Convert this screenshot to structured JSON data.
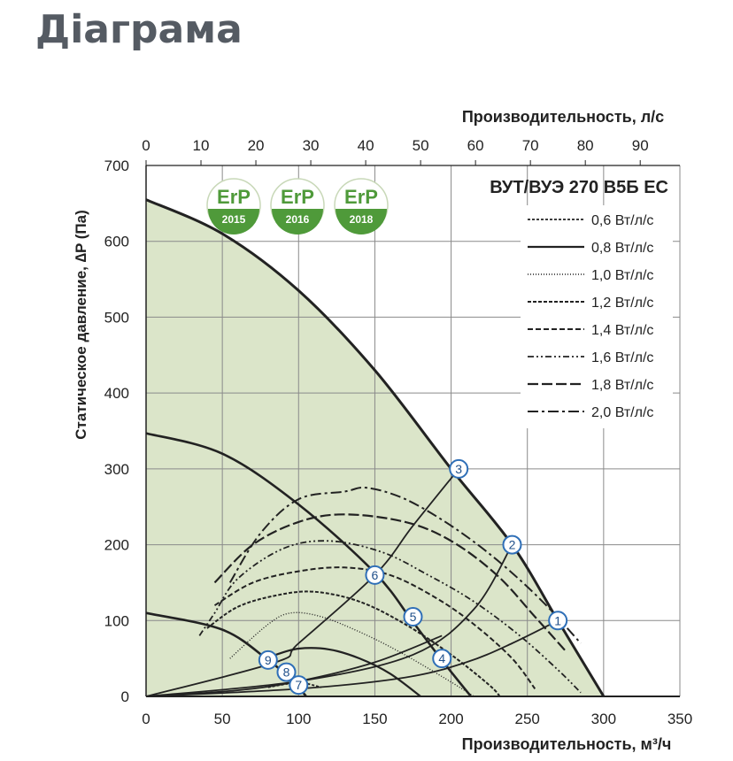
{
  "page": {
    "heading": "Діаграма"
  },
  "chart_data": {
    "type": "line",
    "title": "ВУТ/ВУЭ 270 В5Б ЕС",
    "xlabel": "Производительность, м³/ч",
    "x2label": "Производительность, л/с",
    "ylabel": "Статическое давление, ∆P (Па)",
    "xlim": [
      0,
      350
    ],
    "ylim": [
      0,
      700
    ],
    "x_ticks": [
      "0",
      "50",
      "100",
      "150",
      "200",
      "250",
      "300",
      "350"
    ],
    "x2_ticks": [
      "0",
      "10",
      "20",
      "30",
      "40",
      "50",
      "60",
      "70",
      "80",
      "90"
    ],
    "y_ticks": [
      "0",
      "100",
      "200",
      "300",
      "400",
      "500",
      "600",
      "700"
    ],
    "grid": true,
    "legend_position": "top-right",
    "badges": [
      {
        "text": "ErP",
        "year": "2015"
      },
      {
        "text": "ErP",
        "year": "2016"
      },
      {
        "text": "ErP",
        "year": "2018"
      }
    ],
    "legend": [
      {
        "label": "0,6 Вт/л/с",
        "dash": "3,2",
        "width": 1.8
      },
      {
        "label": "0,8 Вт/л/с",
        "dash": "",
        "width": 2.2
      },
      {
        "label": "1,0 Вт/л/с",
        "dash": "1,2",
        "width": 1.4
      },
      {
        "label": "1,2 Вт/л/с",
        "dash": "4,2",
        "width": 2
      },
      {
        "label": "1,4 Вт/л/с",
        "dash": "6,3",
        "width": 2
      },
      {
        "label": "1,6 Вт/л/с",
        "dash": "7,3,2,3,2,3",
        "width": 1.8
      },
      {
        "label": "1,8 Вт/л/с",
        "dash": "12,4",
        "width": 2.2
      },
      {
        "label": "2,0 Вт/л/с",
        "dash": "12,4,3,4",
        "width": 2
      }
    ],
    "fan_curves": [
      {
        "name": "max",
        "points": [
          [
            0,
            655
          ],
          [
            50,
            610
          ],
          [
            100,
            535
          ],
          [
            150,
            430
          ],
          [
            200,
            300
          ],
          [
            240,
            200
          ],
          [
            270,
            100
          ],
          [
            300,
            0
          ]
        ]
      },
      {
        "name": "mid",
        "points": [
          [
            0,
            347
          ],
          [
            50,
            320
          ],
          [
            100,
            253
          ],
          [
            150,
            163
          ],
          [
            175,
            98
          ],
          [
            195,
            45
          ],
          [
            213,
            0
          ]
        ]
      },
      {
        "name": "low",
        "points": [
          [
            0,
            110
          ],
          [
            50,
            88
          ],
          [
            80,
            48
          ],
          [
            92,
            28
          ],
          [
            100,
            12
          ],
          [
            105,
            0
          ]
        ]
      }
    ],
    "system_curves": [
      {
        "name": "s1",
        "points": [
          [
            0,
            0
          ],
          [
            100,
            10
          ],
          [
            170,
            25
          ],
          [
            210,
            45
          ],
          [
            240,
            70
          ],
          [
            270,
            100
          ]
        ]
      },
      {
        "name": "s2",
        "points": [
          [
            0,
            0
          ],
          [
            100,
            20
          ],
          [
            175,
            55
          ],
          [
            215,
            115
          ],
          [
            240,
            200
          ]
        ]
      },
      {
        "name": "s3",
        "points": [
          [
            0,
            0
          ],
          [
            85,
            45
          ],
          [
            100,
            70
          ],
          [
            150,
            160
          ],
          [
            175,
            225
          ],
          [
            205,
            300
          ]
        ]
      },
      {
        "name": "s4",
        "points": [
          [
            0,
            0
          ],
          [
            60,
            8
          ],
          [
            100,
            20
          ],
          [
            150,
            45
          ],
          [
            194,
            80
          ]
        ]
      }
    ],
    "sfp_curves": [
      {
        "label": "0,6 Вт/л/с",
        "points": [
          [
            80,
            12
          ],
          [
            100,
            18
          ],
          [
            115,
            12
          ]
        ]
      },
      {
        "label": "0,8 Вт/л/с",
        "points": [
          [
            85,
            55
          ],
          [
            100,
            63
          ],
          [
            120,
            62
          ],
          [
            140,
            50
          ],
          [
            160,
            30
          ],
          [
            180,
            0
          ]
        ]
      },
      {
        "label": "1,0 Вт/л/с",
        "points": [
          [
            55,
            50
          ],
          [
            80,
            95
          ],
          [
            95,
            110
          ],
          [
            115,
            105
          ],
          [
            140,
            85
          ],
          [
            165,
            60
          ],
          [
            195,
            25
          ],
          [
            215,
            0
          ]
        ]
      },
      {
        "label": "1,2 Вт/л/с",
        "points": [
          [
            40,
            90
          ],
          [
            60,
            118
          ],
          [
            85,
            133
          ],
          [
            110,
            138
          ],
          [
            140,
            125
          ],
          [
            170,
            95
          ],
          [
            200,
            55
          ],
          [
            225,
            15
          ],
          [
            232,
            0
          ]
        ]
      },
      {
        "label": "1,4 Вт/л/с",
        "points": [
          [
            45,
            120
          ],
          [
            70,
            150
          ],
          [
            100,
            165
          ],
          [
            130,
            170
          ],
          [
            160,
            160
          ],
          [
            190,
            130
          ],
          [
            215,
            95
          ],
          [
            240,
            50
          ],
          [
            255,
            10
          ]
        ]
      },
      {
        "label": "1,6 Вт/л/с",
        "points": [
          [
            35,
            80
          ],
          [
            45,
            110
          ],
          [
            60,
            155
          ],
          [
            90,
            195
          ],
          [
            120,
            205
          ],
          [
            155,
            190
          ],
          [
            185,
            160
          ],
          [
            215,
            125
          ],
          [
            245,
            80
          ],
          [
            270,
            35
          ],
          [
            285,
            5
          ]
        ]
      },
      {
        "label": "1,8 Вт/л/с",
        "points": [
          [
            45,
            150
          ],
          [
            70,
            200
          ],
          [
            100,
            230
          ],
          [
            130,
            240
          ],
          [
            170,
            230
          ],
          [
            200,
            205
          ],
          [
            230,
            160
          ],
          [
            255,
            105
          ],
          [
            275,
            60
          ]
        ]
      },
      {
        "label": "2,0 Вт/л/с",
        "points": [
          [
            55,
            150
          ],
          [
            75,
            215
          ],
          [
            100,
            260
          ],
          [
            130,
            270
          ],
          [
            145,
            275
          ],
          [
            170,
            260
          ],
          [
            200,
            225
          ],
          [
            230,
            180
          ],
          [
            260,
            125
          ],
          [
            285,
            70
          ]
        ]
      }
    ],
    "points": [
      {
        "label": "1",
        "x": 270,
        "y": 100
      },
      {
        "label": "2",
        "x": 240,
        "y": 200
      },
      {
        "label": "3",
        "x": 205,
        "y": 300
      },
      {
        "label": "4",
        "x": 194,
        "y": 50
      },
      {
        "label": "5",
        "x": 175,
        "y": 105
      },
      {
        "label": "6",
        "x": 150,
        "y": 160
      },
      {
        "label": "7",
        "x": 100,
        "y": 15
      },
      {
        "label": "8",
        "x": 92,
        "y": 32
      },
      {
        "label": "9",
        "x": 80,
        "y": 48
      }
    ],
    "colors": {
      "fill": "#dbe5c9",
      "grid": "#8a8a8a",
      "curve": "#222222",
      "marker": "#2f6fb7",
      "badge": "#4f9a3a"
    }
  }
}
